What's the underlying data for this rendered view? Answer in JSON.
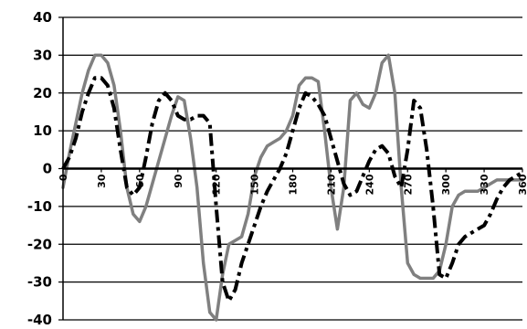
{
  "chart_data": {
    "type": "line",
    "xlim": [
      0,
      360
    ],
    "ylim": [
      -40,
      40
    ],
    "x_ticks": [
      0,
      30,
      60,
      90,
      120,
      150,
      180,
      210,
      240,
      270,
      300,
      330,
      360
    ],
    "x_tick_labels": [
      "0",
      "30",
      "60",
      "90",
      "120",
      "150",
      "180",
      "210",
      "240",
      "270",
      "300",
      "330",
      "360"
    ],
    "y_ticks": [
      40,
      30,
      20,
      10,
      0,
      -10,
      -20,
      -30,
      -40
    ],
    "y_tick_labels": [
      "40",
      "30",
      "20",
      "10",
      "0",
      "-10",
      "-20",
      "-30",
      "-40"
    ],
    "grid": "horizontal",
    "colors": {
      "solid_series": "#808080",
      "dashed_series": "#000000",
      "axes": "#000000"
    },
    "series": [
      {
        "style": "solid",
        "x": [
          0,
          5,
          10,
          15,
          20,
          25,
          30,
          35,
          40,
          45,
          50,
          55,
          60,
          65,
          70,
          75,
          80,
          85,
          90,
          95,
          100,
          105,
          110,
          115,
          120,
          125,
          130,
          135,
          140,
          145,
          150,
          155,
          160,
          165,
          170,
          175,
          180,
          185,
          190,
          195,
          200,
          205,
          210,
          215,
          220,
          225,
          230,
          235,
          240,
          245,
          250,
          255,
          260,
          265,
          270,
          275,
          280,
          285,
          290,
          295,
          300,
          305,
          310,
          315,
          320,
          325,
          330,
          335,
          340,
          345,
          350,
          355,
          360
        ],
        "y": [
          -5,
          4,
          12,
          20,
          26,
          30,
          30,
          28,
          22,
          10,
          -5,
          -12,
          -14,
          -10,
          -4,
          2,
          8,
          14,
          19,
          18,
          8,
          -5,
          -25,
          -38,
          -40,
          -28,
          -20,
          -19,
          -18,
          -12,
          -2,
          3,
          6,
          7,
          8,
          10,
          14,
          22,
          24,
          24,
          23,
          10,
          -5,
          -16,
          -5,
          18,
          20,
          17,
          16,
          20,
          28,
          30,
          20,
          -5,
          -25,
          -28,
          -29,
          -29,
          -29,
          -27,
          -20,
          -10,
          -7,
          -6,
          -6,
          -6,
          -5,
          -4,
          -3,
          -3,
          -3,
          -3,
          -3
        ]
      },
      {
        "style": "dashed",
        "x": [
          0,
          5,
          10,
          15,
          20,
          25,
          30,
          35,
          40,
          45,
          50,
          55,
          60,
          65,
          70,
          75,
          80,
          85,
          90,
          95,
          100,
          105,
          110,
          115,
          120,
          125,
          130,
          135,
          140,
          145,
          150,
          155,
          160,
          165,
          170,
          175,
          180,
          185,
          190,
          195,
          200,
          205,
          210,
          215,
          220,
          225,
          230,
          235,
          240,
          245,
          250,
          255,
          260,
          265,
          270,
          275,
          280,
          285,
          290,
          295,
          300,
          305,
          310,
          315,
          320,
          325,
          330,
          335,
          340,
          345,
          350,
          355,
          360
        ],
        "y": [
          0,
          3,
          8,
          15,
          20,
          24,
          24,
          22,
          16,
          5,
          -5,
          -7,
          -5,
          3,
          12,
          18,
          20,
          18,
          14,
          13,
          13,
          14,
          14,
          12,
          -10,
          -30,
          -35,
          -32,
          -25,
          -20,
          -15,
          -10,
          -6,
          -3,
          0,
          4,
          10,
          16,
          20,
          19,
          17,
          14,
          8,
          2,
          -4,
          -7,
          -6,
          -2,
          2,
          5,
          6,
          4,
          -2,
          -5,
          5,
          18,
          16,
          5,
          -10,
          -28,
          -29,
          -25,
          -20,
          -18,
          -17,
          -16,
          -15,
          -12,
          -8,
          -5,
          -3,
          -2,
          -1
        ]
      }
    ]
  }
}
